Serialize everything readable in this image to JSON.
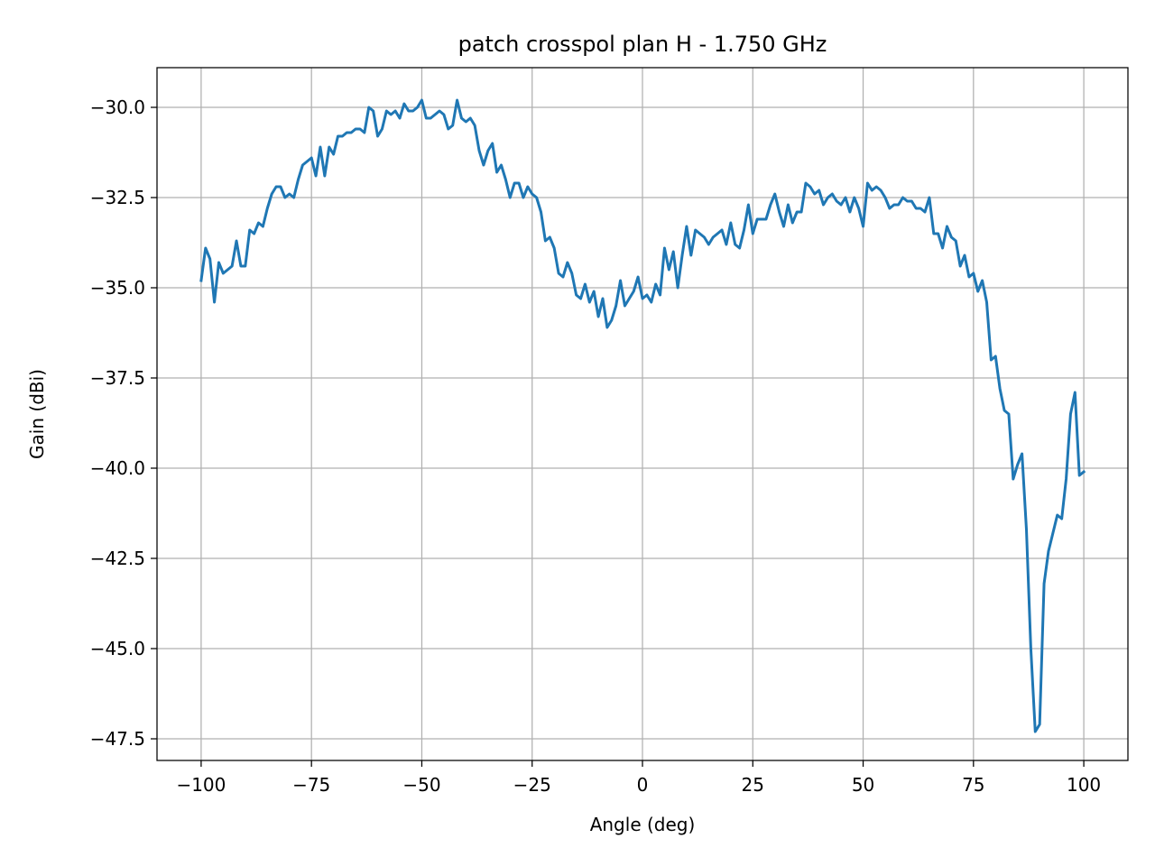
{
  "chart_data": {
    "type": "line",
    "title": "patch crosspol plan H - 1.750 GHz",
    "xlabel": "Angle (deg)",
    "ylabel": "Gain (dBi)",
    "xlim": [
      -110,
      110
    ],
    "ylim": [
      -48.1,
      -28.9
    ],
    "x_ticks": [
      -100,
      -75,
      -50,
      -25,
      0,
      25,
      50,
      75,
      100
    ],
    "x_tick_labels": [
      "−100",
      "−75",
      "−50",
      "−25",
      "0",
      "25",
      "50",
      "75",
      "100"
    ],
    "y_ticks": [
      -30.0,
      -32.5,
      -35.0,
      -37.5,
      -40.0,
      -42.5,
      -45.0,
      -47.5
    ],
    "y_tick_labels": [
      "−30.0",
      "−32.5",
      "−35.0",
      "−37.5",
      "−40.0",
      "−42.5",
      "−45.0",
      "−47.5"
    ],
    "grid": true,
    "line_color": "#1f77b4",
    "series": [
      {
        "x": [
          -100,
          -99,
          -98,
          -97,
          -96,
          -95,
          -94,
          -93,
          -92,
          -91,
          -90,
          -89,
          -88,
          -87,
          -86,
          -85,
          -84,
          -83,
          -82,
          -81,
          -80,
          -79,
          -78,
          -77,
          -76,
          -75,
          -74,
          -73,
          -72,
          -71,
          -70,
          -69,
          -68,
          -67,
          -66,
          -65,
          -64,
          -63,
          -62,
          -61,
          -60,
          -59,
          -58,
          -57,
          -56,
          -55,
          -54,
          -53,
          -52,
          -51,
          -50,
          -49,
          -48,
          -47,
          -46,
          -45,
          -44,
          -43,
          -42,
          -41,
          -40,
          -39,
          -38,
          -37,
          -36,
          -35,
          -34,
          -33,
          -32,
          -31,
          -30,
          -29,
          -28,
          -27,
          -26,
          -25,
          -24,
          -23,
          -22,
          -21,
          -20,
          -19,
          -18,
          -17,
          -16,
          -15,
          -14,
          -13,
          -12,
          -11,
          -10,
          -9,
          -8,
          -7,
          -6,
          -5,
          -4,
          -3,
          -2,
          -1,
          0,
          1,
          2,
          3,
          4,
          5,
          6,
          7,
          8,
          9,
          10,
          11,
          12,
          13,
          14,
          15,
          16,
          17,
          18,
          19,
          20,
          21,
          22,
          23,
          24,
          25,
          26,
          27,
          28,
          29,
          30,
          31,
          32,
          33,
          34,
          35,
          36,
          37,
          38,
          39,
          40,
          41,
          42,
          43,
          44,
          45,
          46,
          47,
          48,
          49,
          50,
          51,
          52,
          53,
          54,
          55,
          56,
          57,
          58,
          59,
          60,
          61,
          62,
          63,
          64,
          65,
          66,
          67,
          68,
          69,
          70,
          71,
          72,
          73,
          74,
          75,
          76,
          77,
          78,
          79,
          80,
          81,
          82,
          83,
          84,
          85,
          86,
          87,
          88,
          89,
          90,
          91,
          92,
          93,
          94,
          95,
          96,
          97,
          98,
          99,
          100
        ],
        "y": [
          -34.8,
          -33.9,
          -34.2,
          -35.4,
          -34.3,
          -34.6,
          -34.5,
          -34.4,
          -33.7,
          -34.4,
          -34.4,
          -33.4,
          -33.5,
          -33.2,
          -33.3,
          -32.8,
          -32.4,
          -32.2,
          -32.2,
          -32.5,
          -32.4,
          -32.5,
          -32.0,
          -31.6,
          -31.5,
          -31.4,
          -31.9,
          -31.1,
          -31.9,
          -31.1,
          -31.3,
          -30.8,
          -30.8,
          -30.7,
          -30.7,
          -30.6,
          -30.6,
          -30.7,
          -30.0,
          -30.1,
          -30.8,
          -30.6,
          -30.1,
          -30.2,
          -30.1,
          -30.3,
          -29.9,
          -30.1,
          -30.1,
          -30.0,
          -29.8,
          -30.3,
          -30.3,
          -30.2,
          -30.1,
          -30.2,
          -30.6,
          -30.5,
          -29.8,
          -30.3,
          -30.4,
          -30.3,
          -30.5,
          -31.2,
          -31.6,
          -31.2,
          -31.0,
          -31.8,
          -31.6,
          -32.0,
          -32.5,
          -32.1,
          -32.1,
          -32.5,
          -32.2,
          -32.4,
          -32.5,
          -32.9,
          -33.7,
          -33.6,
          -33.9,
          -34.6,
          -34.7,
          -34.3,
          -34.6,
          -35.2,
          -35.3,
          -34.9,
          -35.4,
          -35.1,
          -35.8,
          -35.3,
          -36.1,
          -35.9,
          -35.5,
          -34.8,
          -35.5,
          -35.3,
          -35.1,
          -34.7,
          -35.3,
          -35.2,
          -35.4,
          -34.9,
          -35.2,
          -33.9,
          -34.5,
          -34.0,
          -35.0,
          -34.1,
          -33.3,
          -34.1,
          -33.4,
          -33.5,
          -33.6,
          -33.8,
          -33.6,
          -33.5,
          -33.4,
          -33.8,
          -33.2,
          -33.8,
          -33.9,
          -33.4,
          -32.7,
          -33.5,
          -33.1,
          -33.1,
          -33.1,
          -32.7,
          -32.4,
          -32.9,
          -33.3,
          -32.7,
          -33.2,
          -32.9,
          -32.9,
          -32.1,
          -32.2,
          -32.4,
          -32.3,
          -32.7,
          -32.5,
          -32.4,
          -32.6,
          -32.7,
          -32.5,
          -32.9,
          -32.5,
          -32.8,
          -33.3,
          -32.1,
          -32.3,
          -32.2,
          -32.3,
          -32.5,
          -32.8,
          -32.7,
          -32.7,
          -32.5,
          -32.6,
          -32.6,
          -32.8,
          -32.8,
          -32.9,
          -32.5,
          -33.5,
          -33.5,
          -33.9,
          -33.3,
          -33.6,
          -33.7,
          -34.4,
          -34.1,
          -34.7,
          -34.6,
          -35.1,
          -34.8,
          -35.4,
          -37.0,
          -36.9,
          -37.8,
          -38.4,
          -38.5,
          -40.3,
          -39.9,
          -39.6,
          -41.7,
          -45.0,
          -47.3,
          -47.1,
          -43.2,
          -42.3,
          -41.8,
          -41.3,
          -41.4,
          -40.3,
          -38.5,
          -37.9,
          -40.2,
          -40.1
        ]
      }
    ]
  }
}
